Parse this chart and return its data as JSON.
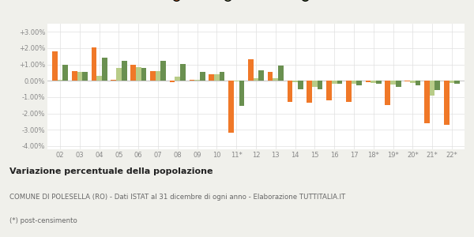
{
  "categories": [
    "02",
    "03",
    "04",
    "05",
    "06",
    "07",
    "08",
    "09",
    "10",
    "11*",
    "12",
    "13",
    "14",
    "15",
    "16",
    "17",
    "18*",
    "19*",
    "20*",
    "21*",
    "22*"
  ],
  "polesella": [
    1.8,
    0.6,
    2.05,
    0.05,
    1.0,
    0.6,
    -0.1,
    0.05,
    0.4,
    -3.2,
    1.3,
    0.55,
    -1.3,
    -1.35,
    -1.2,
    -1.3,
    -0.1,
    -1.5,
    -0.05,
    -2.6,
    -2.7
  ],
  "provincia_ro": [
    0.05,
    0.55,
    0.3,
    0.8,
    0.85,
    0.6,
    0.25,
    0.05,
    0.4,
    -0.05,
    0.15,
    0.15,
    -0.1,
    -0.35,
    -0.2,
    -0.2,
    -0.15,
    -0.25,
    -0.15,
    -0.9,
    -0.15
  ],
  "veneto": [
    1.0,
    0.55,
    1.4,
    1.2,
    0.8,
    1.2,
    1.05,
    0.55,
    0.55,
    -1.55,
    0.65,
    0.95,
    -0.5,
    -0.5,
    -0.2,
    -0.3,
    -0.2,
    -0.35,
    -0.3,
    -0.55,
    -0.2
  ],
  "color_polesella": "#f07828",
  "color_provincia": "#b8cc88",
  "color_veneto": "#6a9050",
  "title1": "Variazione percentuale della popolazione",
  "subtitle": "COMUNE DI POLESELLA (RO) - Dati ISTAT al 31 dicembre di ogni anno - Elaborazione TUTTITALIA.IT",
  "footnote": "(*) post-censimento",
  "ylim": [
    -4.2,
    3.5
  ],
  "yticks": [
    3.0,
    2.0,
    1.0,
    0.0,
    -1.0,
    -2.0,
    -3.0,
    -4.0
  ],
  "ytick_labels": [
    "+3.00%",
    "+2.00%",
    "+1.00%",
    "0.00%",
    "-1.00%",
    "-2.00%",
    "-3.00%",
    "-4.00%"
  ],
  "bg_color": "#f0f0eb",
  "plot_bg": "#ffffff"
}
